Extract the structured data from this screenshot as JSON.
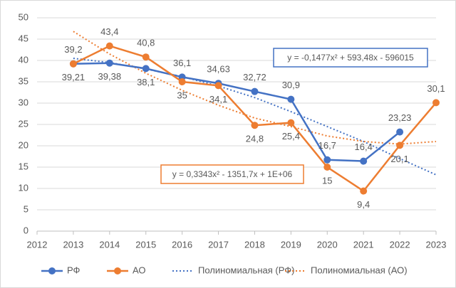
{
  "chart_data": {
    "type": "line",
    "x": [
      2013,
      2014,
      2015,
      2016,
      2017,
      2018,
      2019,
      2020,
      2021,
      2022,
      2023
    ],
    "xlim": [
      2012,
      2023
    ],
    "xticks": [
      2012,
      2013,
      2014,
      2015,
      2016,
      2017,
      2018,
      2019,
      2020,
      2021,
      2022,
      2023
    ],
    "ylim": [
      0,
      50
    ],
    "yticks": [
      0,
      5,
      10,
      15,
      20,
      25,
      30,
      35,
      40,
      45,
      50
    ],
    "grid": true,
    "legend": "bottom",
    "series": [
      {
        "name": "РФ",
        "color": "#4472c4",
        "style": "solid",
        "values": [
          39.21,
          39.38,
          38.1,
          36.1,
          34.63,
          32.72,
          30.9,
          16.7,
          16.4,
          23.23,
          null
        ],
        "value_labels": [
          "39,21",
          "39,38",
          "38,1",
          "36,1",
          "34,63",
          "32,72",
          "30,9",
          "16,7",
          "16,4",
          "23,23",
          null
        ]
      },
      {
        "name": "АО",
        "color": "#ed7d31",
        "style": "solid",
        "values": [
          39.2,
          43.4,
          40.8,
          35,
          34.1,
          24.8,
          25.4,
          15,
          9.4,
          20.1,
          30.1
        ],
        "value_labels": [
          "39,2",
          "43,4",
          "40,8",
          "35",
          "34,1",
          "24,8",
          "25,4",
          "15",
          "9,4",
          "20,1",
          "30,1"
        ]
      },
      {
        "name": "Полиномиальная (РФ)",
        "color": "#4472c4",
        "style": "dotted",
        "values": [
          40.5,
          39.5,
          38,
          36.2,
          34,
          31.3,
          28,
          24.5,
          21,
          17,
          13.2
        ]
      },
      {
        "name": "Полиномиальная (АО)",
        "color": "#ed7d31",
        "style": "dotted",
        "values": [
          46.8,
          41.5,
          37,
          33,
          29.5,
          26.5,
          24.5,
          22.3,
          21,
          20.4,
          21
        ]
      }
    ],
    "annotations": [
      {
        "text": "y = -0,1477x² + 593,48x - 596015",
        "series": 0
      },
      {
        "text": "y = 0,3343x² - 1351,7x + 1E+06",
        "series": 1
      }
    ]
  }
}
